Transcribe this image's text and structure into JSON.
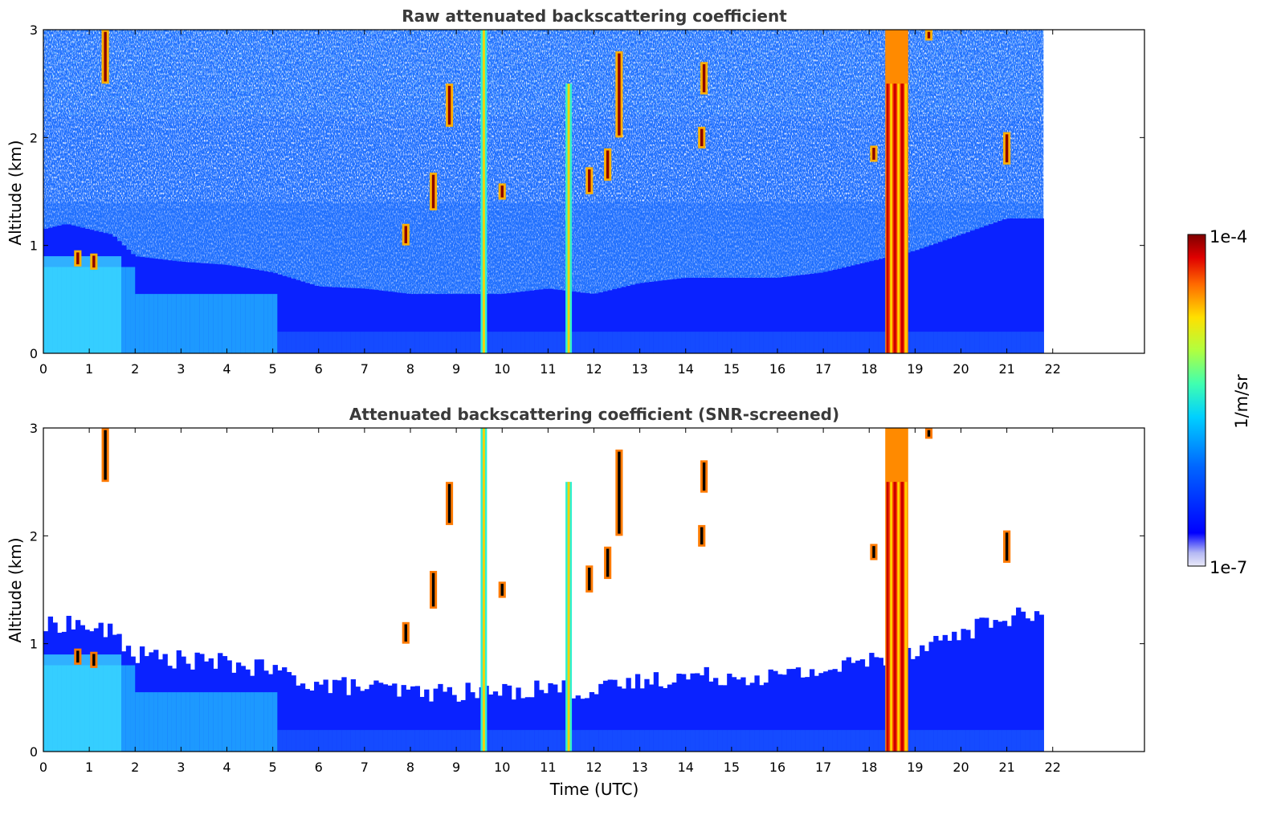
{
  "chart_data": {
    "type": "heatmap",
    "xlabel": "Time (UTC)",
    "x_range": [
      0,
      24
    ],
    "y_range": [
      0,
      3
    ],
    "x_ticks": [
      "0",
      "1",
      "2",
      "3",
      "4",
      "5",
      "6",
      "7",
      "8",
      "9",
      "10",
      "11",
      "12",
      "13",
      "14",
      "15",
      "16",
      "17",
      "18",
      "19",
      "20",
      "21",
      "22"
    ],
    "y_ticks": [
      "0",
      "1",
      "2",
      "3"
    ],
    "data_end_time": 21.8,
    "panels": [
      {
        "id": "raw",
        "title": "Raw attenuated backscattering coefficient",
        "ylabel": "Altitude (km)",
        "screened": false
      },
      {
        "id": "snr",
        "title": "Attenuated backscattering coefficient (SNR-screened)",
        "ylabel": "Altitude (km)",
        "screened": true
      }
    ],
    "colorbar": {
      "label": "1/m/sr",
      "max_label": "1e-4",
      "min_label": "1e-7",
      "scale": "log",
      "colormap": "jet"
    },
    "features": {
      "aerosol_layer_top_km": [
        [
          0,
          1.15
        ],
        [
          0.5,
          1.2
        ],
        [
          1.5,
          1.1
        ],
        [
          2,
          0.9
        ],
        [
          3,
          0.85
        ],
        [
          4,
          0.82
        ],
        [
          5,
          0.75
        ],
        [
          6,
          0.62
        ],
        [
          7,
          0.6
        ],
        [
          8,
          0.55
        ],
        [
          9,
          0.55
        ],
        [
          10,
          0.55
        ],
        [
          11,
          0.6
        ],
        [
          12,
          0.55
        ],
        [
          13,
          0.65
        ],
        [
          14,
          0.7
        ],
        [
          15,
          0.7
        ],
        [
          16,
          0.7
        ],
        [
          17,
          0.75
        ],
        [
          18,
          0.85
        ],
        [
          19,
          0.95
        ],
        [
          20,
          1.1
        ],
        [
          21,
          1.25
        ],
        [
          21.8,
          1.25
        ]
      ],
      "thick_cloud_columns": [
        {
          "t0": 18.35,
          "t1": 18.85,
          "top_km": 3.0,
          "core_top_km": 2.5
        }
      ],
      "thin_cloud_columns": [
        {
          "t": 9.6,
          "top_km": 3.0
        },
        {
          "t": 11.45,
          "top_km": 2.5
        }
      ],
      "elevated_clouds": [
        {
          "t": 1.35,
          "alt_km": 2.75,
          "depth_km": 0.5
        },
        {
          "t": 0.75,
          "alt_km": 0.88,
          "depth_km": 0.15
        },
        {
          "t": 1.1,
          "alt_km": 0.85,
          "depth_km": 0.15
        },
        {
          "t": 8.85,
          "alt_km": 2.3,
          "depth_km": 0.4
        },
        {
          "t": 8.5,
          "alt_km": 1.5,
          "depth_km": 0.35
        },
        {
          "t": 7.9,
          "alt_km": 1.1,
          "depth_km": 0.2
        },
        {
          "t": 10.0,
          "alt_km": 1.5,
          "depth_km": 0.15
        },
        {
          "t": 12.55,
          "alt_km": 2.4,
          "depth_km": 0.8
        },
        {
          "t": 11.9,
          "alt_km": 1.6,
          "depth_km": 0.25
        },
        {
          "t": 12.3,
          "alt_km": 1.75,
          "depth_km": 0.3
        },
        {
          "t": 14.35,
          "alt_km": 2.0,
          "depth_km": 0.2
        },
        {
          "t": 14.4,
          "alt_km": 2.55,
          "depth_km": 0.3
        },
        {
          "t": 18.1,
          "alt_km": 1.85,
          "depth_km": 0.15
        },
        {
          "t": 19.3,
          "alt_km": 2.95,
          "depth_km": 0.1
        },
        {
          "t": 21.0,
          "alt_km": 1.9,
          "depth_km": 0.3
        }
      ]
    }
  }
}
